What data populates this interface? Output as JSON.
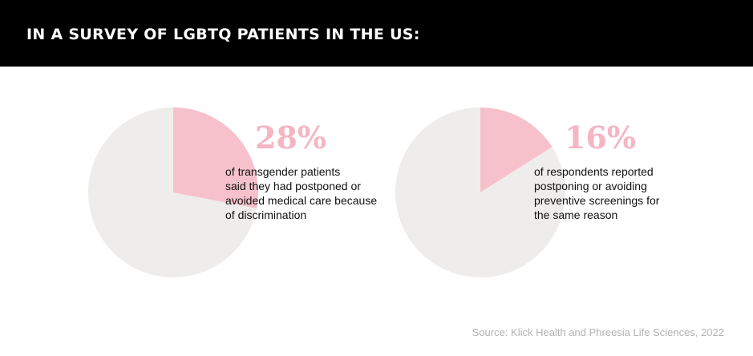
{
  "header": {
    "title": "IN A SURVEY OF LGBTQ PATIENTS IN THE US:"
  },
  "colors": {
    "header_background": "#000000",
    "header_text": "#ffffff",
    "pie_highlight": "#f7c1cc",
    "pie_remainder": "#efedeb",
    "percentage_text": "#f5b5c3",
    "body_text": "#111111",
    "source_text": "#b2b2b2"
  },
  "chart_data": [
    {
      "type": "pie",
      "values": [
        28,
        72
      ],
      "percentage_label": "28%",
      "description": "of transgender patients\nsaid they had postponed or\navoided medical care because\nof discrimination"
    },
    {
      "type": "pie",
      "values": [
        16,
        84
      ],
      "percentage_label": "16%",
      "description": "of respondents reported\npostponing or avoiding\npreventive screenings for\nthe same reason"
    }
  ],
  "source": "Source: Klick Health and Phreesia Life Sciences, 2022"
}
